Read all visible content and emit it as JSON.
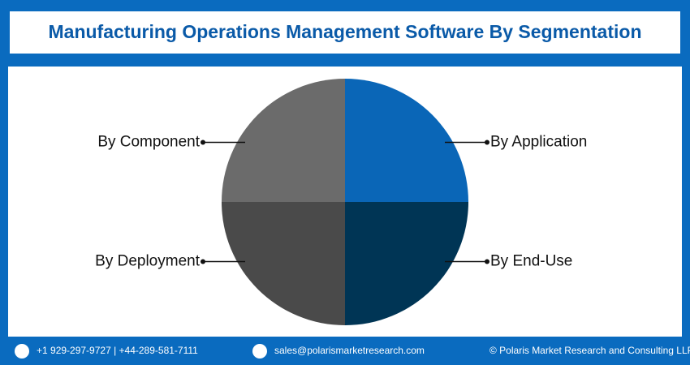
{
  "chart_data": {
    "type": "pie",
    "title": "Manufacturing Operations Management Software By Segmentation",
    "categories": [
      "By Application",
      "By End-Use",
      "By Deployment",
      "By Component"
    ],
    "values": [
      25,
      25,
      25,
      25
    ],
    "colors": [
      "#0a66b7",
      "#003555",
      "#4a4a4a",
      "#6b6b6b"
    ]
  },
  "footer": {
    "phone": "+1 929-297-9727 | +44-289-581-7111",
    "email": "sales@polarismarketresearch.com",
    "copyright": "© Polaris Market Research and Consulting LLP"
  }
}
